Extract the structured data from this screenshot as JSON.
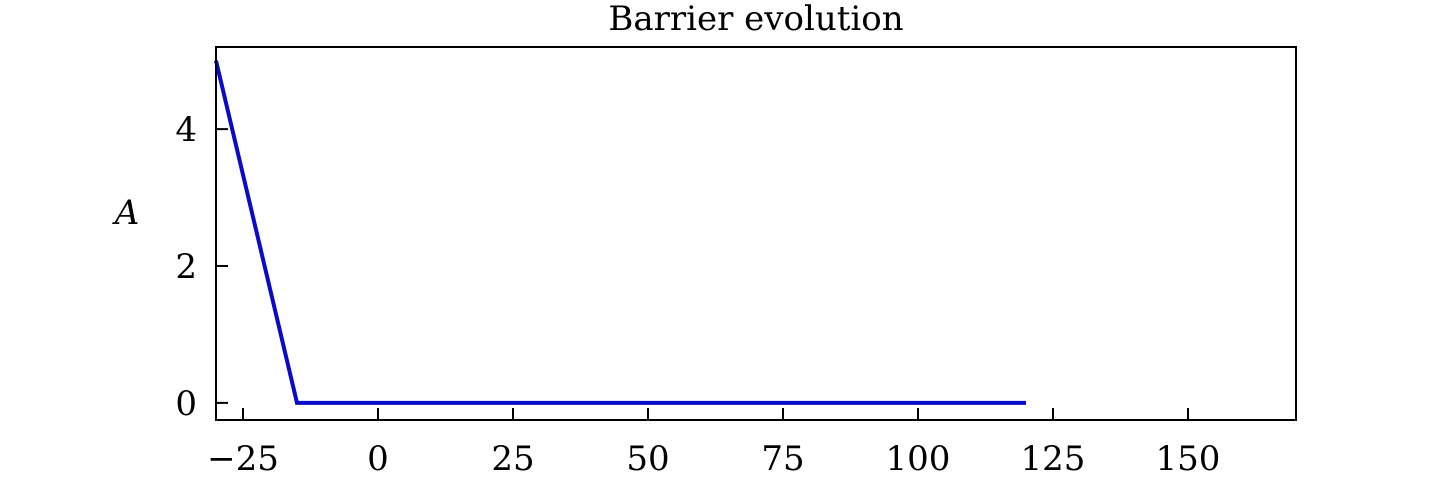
{
  "chart_data": {
    "type": "line",
    "title": "Barrier evolution",
    "xlabel": "",
    "ylabel": "A",
    "xlim": [
      -30,
      170
    ],
    "ylim": [
      -0.25,
      5.2
    ],
    "x_ticks": [
      -25,
      0,
      25,
      50,
      75,
      100,
      125,
      150
    ],
    "x_tick_labels": [
      "−25",
      "0",
      "25",
      "50",
      "75",
      "100",
      "125",
      "150"
    ],
    "y_ticks": [
      0,
      2,
      4
    ],
    "y_tick_labels": [
      "0",
      "2",
      "4"
    ],
    "grid": false,
    "series": [
      {
        "color": "#0a0ac8",
        "x": [
          -30,
          -15,
          120
        ],
        "y": [
          5.0,
          0,
          0
        ]
      }
    ]
  }
}
